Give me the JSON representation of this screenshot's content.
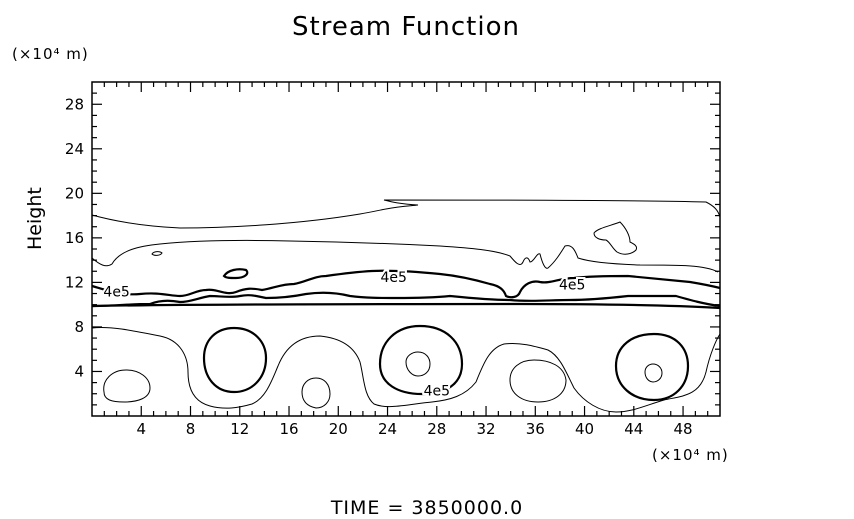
{
  "chart_data": {
    "type": "contour",
    "title": "Stream Function",
    "ylabel": "Height",
    "y_unit": "(×10⁴ m)",
    "x_unit": "(×10⁴ m)",
    "xlim": [
      0,
      51
    ],
    "ylim": [
      0,
      30
    ],
    "x_ticks": [
      4,
      8,
      12,
      16,
      20,
      24,
      28,
      32,
      36,
      40,
      44,
      48
    ],
    "y_ticks": [
      4,
      8,
      12,
      16,
      20,
      24,
      28
    ],
    "contour_labels": [
      {
        "text": "4e5",
        "x": 24.5,
        "y": 12.5
      },
      {
        "text": "4e5",
        "x": 39.0,
        "y": 11.8
      },
      {
        "text": "4e5",
        "x": 2.0,
        "y": 11.2
      },
      {
        "text": "4e5",
        "x": 28.0,
        "y": 2.3
      }
    ],
    "footer": "TIME  =  3850000.0"
  }
}
